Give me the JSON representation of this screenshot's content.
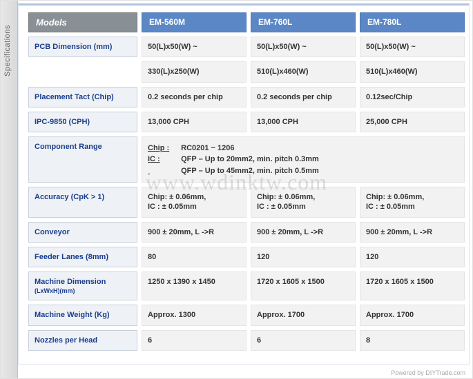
{
  "side_label": "Specifications",
  "watermark": "www.wdinktw.com",
  "footer_prefix": "Powered by ",
  "footer_link": "DIYTrade.com",
  "header": {
    "models": "Models",
    "cols": [
      "EM-560M",
      "EM-760L",
      "EM-780L"
    ]
  },
  "rows": {
    "pcb": {
      "label": "PCB Dimension (mm)",
      "r1": [
        "50(L)x50(W) ~",
        "50(L)x50(W) ~",
        "50(L)x50(W) ~"
      ],
      "r2": [
        "330(L)x250(W)",
        "510(L)x460(W)",
        "510(L)x460(W)"
      ]
    },
    "tact": {
      "label": "Placement Tact (Chip)",
      "v": [
        "0.2 seconds per chip",
        "0.2 seconds per chip",
        "0.12sec/Chip"
      ]
    },
    "ipc": {
      "label": "IPC-9850 (CPH)",
      "v": [
        "13,000 CPH",
        "13,000 CPH",
        "25,000 CPH"
      ]
    },
    "comp": {
      "label": "Component Range",
      "chip_k": "Chip :",
      "chip_v": "RC0201 ~ 1206",
      "ic_k": "IC :",
      "ic_v1": "QFP – Up to 20mm2, min. pitch 0.3mm",
      "ic_v2": "QFP – Up to 45mm2, min. pitch 0.5mm"
    },
    "acc": {
      "label": "Accuracy (CpK > 1)",
      "v": [
        "Chip: ± 0.06mm,\nIC : ± 0.05mm",
        "Chip: ± 0.06mm,\nIC : ± 0.05mm",
        "Chip: ± 0.06mm,\nIC : ± 0.05mm"
      ]
    },
    "conv": {
      "label": "Conveyor",
      "v": [
        "900 ± 20mm, L ->R",
        "900 ± 20mm, L ->R",
        "900 ± 20mm, L ->R"
      ]
    },
    "feeder": {
      "label": "Feeder Lanes (8mm)",
      "v": [
        "80",
        "120",
        "120"
      ]
    },
    "dim": {
      "label": "Machine Dimension",
      "sub": "(LxWxH)(mm)",
      "v": [
        "1250 x 1390 x 1450",
        "1720 x 1605 x 1500",
        "1720 x 1605 x 1500"
      ]
    },
    "weight": {
      "label": "Machine Weight (Kg)",
      "v": [
        "Approx. 1300",
        "Approx. 1700",
        "Approx. 1700"
      ]
    },
    "nozzle": {
      "label": "Nozzles per Head",
      "v": [
        "6",
        "6",
        "8"
      ]
    }
  }
}
